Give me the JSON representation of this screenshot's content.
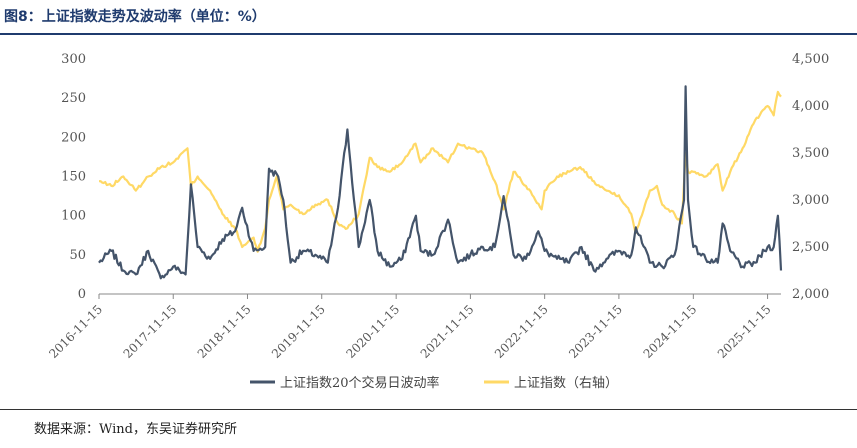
{
  "figure": {
    "title": "图8：上证指数走势及波动率（单位：%）",
    "source": "数据来源：Wind，东吴证券研究所"
  },
  "colors": {
    "volatility": "#44546a",
    "index": "#ffd966",
    "title": "#1f3b6e"
  },
  "chart_data": {
    "type": "line",
    "title": "",
    "xlabel": "",
    "ylabel_left": "",
    "ylabel_right": "",
    "grid": false,
    "legend_position": "bottom",
    "x_ticks": [
      "2016-11-15",
      "2017-11-15",
      "2018-11-15",
      "2019-11-15",
      "2020-11-15",
      "2021-11-15",
      "2022-11-15",
      "2023-11-15",
      "2024-11-15",
      "2025-11-15"
    ],
    "y_left": {
      "min": 0,
      "max": 300,
      "ticks": [
        "0",
        "50",
        "100",
        "150",
        "200",
        "250",
        "300"
      ]
    },
    "y_right": {
      "min": 2000,
      "max": 4500,
      "ticks": [
        "2,000",
        "2,500",
        "3,000",
        "3,500",
        "4,000",
        "4,500"
      ]
    },
    "series": [
      {
        "name": "上证指数20个交易日波动率",
        "axis": "left",
        "x": [
          "2016-11-15",
          "2017-01-15",
          "2017-03-15",
          "2017-05-15",
          "2017-07-15",
          "2017-09-15",
          "2017-11-15",
          "2018-01-15",
          "2018-02-10",
          "2018-03-15",
          "2018-05-15",
          "2018-07-15",
          "2018-09-15",
          "2018-10-20",
          "2018-12-15",
          "2019-02-10",
          "2019-03-01",
          "2019-04-15",
          "2019-05-10",
          "2019-06-15",
          "2019-08-15",
          "2019-10-15",
          "2019-12-15",
          "2020-02-03",
          "2020-03-20",
          "2020-05-15",
          "2020-07-08",
          "2020-08-15",
          "2020-10-15",
          "2020-12-15",
          "2021-02-20",
          "2021-03-15",
          "2021-05-15",
          "2021-07-28",
          "2021-09-15",
          "2021-11-15",
          "2022-01-15",
          "2022-03-15",
          "2022-04-27",
          "2022-06-15",
          "2022-08-15",
          "2022-10-15",
          "2022-11-15",
          "2023-01-15",
          "2023-03-15",
          "2023-05-15",
          "2023-07-15",
          "2023-09-15",
          "2023-11-15",
          "2024-01-15",
          "2024-02-06",
          "2024-04-15",
          "2024-06-15",
          "2024-08-15",
          "2024-09-30",
          "2024-10-08",
          "2024-10-20",
          "2024-11-15",
          "2025-01-15",
          "2025-03-15",
          "2025-04-08",
          "2025-05-15",
          "2025-07-15",
          "2025-09-15",
          "2025-11-15",
          "2025-12-15",
          "2026-01-05",
          "2026-01-20"
        ],
        "values": [
          40,
          55,
          30,
          25,
          55,
          20,
          35,
          25,
          140,
          60,
          45,
          70,
          80,
          110,
          55,
          60,
          160,
          150,
          120,
          40,
          55,
          50,
          40,
          110,
          210,
          60,
          120,
          55,
          35,
          45,
          100,
          55,
          50,
          95,
          40,
          50,
          60,
          60,
          125,
          50,
          45,
          80,
          55,
          45,
          40,
          60,
          30,
          45,
          55,
          50,
          85,
          40,
          35,
          50,
          120,
          265,
          120,
          60,
          45,
          40,
          90,
          55,
          35,
          40,
          60,
          60,
          100,
          30
        ]
      },
      {
        "name": "上证指数（右轴）",
        "axis": "right",
        "x": [
          "2016-11-15",
          "2017-01-15",
          "2017-03-15",
          "2017-05-15",
          "2017-07-15",
          "2017-09-15",
          "2017-11-15",
          "2018-01-24",
          "2018-02-10",
          "2018-03-15",
          "2018-05-15",
          "2018-07-15",
          "2018-09-15",
          "2018-10-20",
          "2018-12-15",
          "2019-01-04",
          "2019-02-10",
          "2019-03-01",
          "2019-04-08",
          "2019-05-10",
          "2019-06-15",
          "2019-08-15",
          "2019-10-15",
          "2019-12-15",
          "2020-02-03",
          "2020-03-20",
          "2020-05-15",
          "2020-07-08",
          "2020-08-15",
          "2020-10-15",
          "2020-12-15",
          "2021-02-18",
          "2021-03-15",
          "2021-05-15",
          "2021-07-28",
          "2021-09-15",
          "2021-11-15",
          "2022-01-15",
          "2022-03-15",
          "2022-04-27",
          "2022-06-15",
          "2022-08-15",
          "2022-10-31",
          "2022-11-15",
          "2023-01-15",
          "2023-03-15",
          "2023-05-09",
          "2023-07-15",
          "2023-09-15",
          "2023-11-15",
          "2024-01-15",
          "2024-02-05",
          "2024-04-15",
          "2024-05-20",
          "2024-06-15",
          "2024-08-15",
          "2024-09-20",
          "2024-10-08",
          "2024-10-20",
          "2024-11-15",
          "2025-01-15",
          "2025-03-15",
          "2025-04-08",
          "2025-05-15",
          "2025-07-15",
          "2025-09-15",
          "2025-11-15",
          "2025-12-15",
          "2026-01-05",
          "2026-01-20"
        ],
        "values": [
          3200,
          3150,
          3250,
          3100,
          3250,
          3350,
          3400,
          3550,
          3150,
          3250,
          3100,
          2850,
          2700,
          2500,
          2600,
          2450,
          2700,
          3000,
          3250,
          2900,
          2950,
          2850,
          2950,
          3000,
          2750,
          2700,
          2850,
          3450,
          3350,
          3300,
          3400,
          3600,
          3400,
          3550,
          3400,
          3600,
          3550,
          3500,
          3200,
          2900,
          3300,
          3150,
          2900,
          3100,
          3250,
          3300,
          3350,
          3200,
          3100,
          3050,
          2850,
          2650,
          3100,
          3150,
          2950,
          2850,
          2750,
          3500,
          3300,
          3300,
          3250,
          3380,
          3100,
          3300,
          3550,
          3850,
          4000,
          3900,
          4150,
          4100
        ]
      }
    ]
  }
}
